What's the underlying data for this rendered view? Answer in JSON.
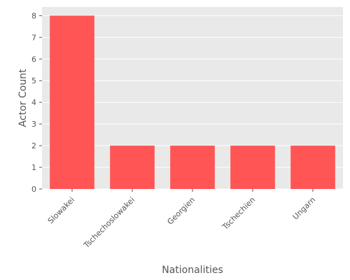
{
  "chart_data": {
    "type": "bar",
    "categories": [
      "Slowakei",
      "Tschechoslowakei",
      "Georgien",
      "Tschechien",
      "Ungarn"
    ],
    "values": [
      8,
      2,
      2,
      2,
      2
    ],
    "title": "",
    "xlabel": "Nationalities",
    "ylabel": "Actor Count",
    "ylim": [
      0,
      8.4
    ],
    "yticks": [
      0,
      1,
      2,
      3,
      4,
      5,
      6,
      7,
      8
    ],
    "grid": true,
    "colors": {
      "bar": "#ff5555",
      "plot_background": "#e9e9e9",
      "grid": "#ffffff",
      "text": "#555555"
    }
  }
}
